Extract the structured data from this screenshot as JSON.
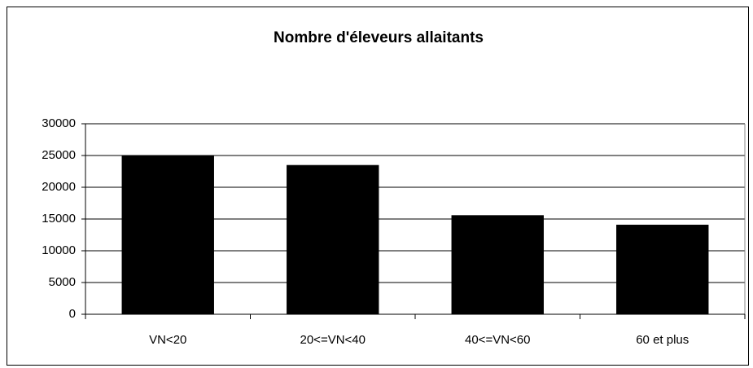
{
  "chart_data": {
    "type": "bar",
    "title": "Nombre d'éleveurs allaitants",
    "categories": [
      "VN<20",
      "20<=VN<40",
      "40<=VN<60",
      "60 et plus"
    ],
    "values": [
      25000,
      23500,
      15600,
      14100
    ],
    "color": "#000000",
    "ylim": [
      0,
      30000
    ],
    "yticks": [
      0,
      5000,
      10000,
      15000,
      20000,
      25000,
      30000
    ],
    "grid": true
  }
}
